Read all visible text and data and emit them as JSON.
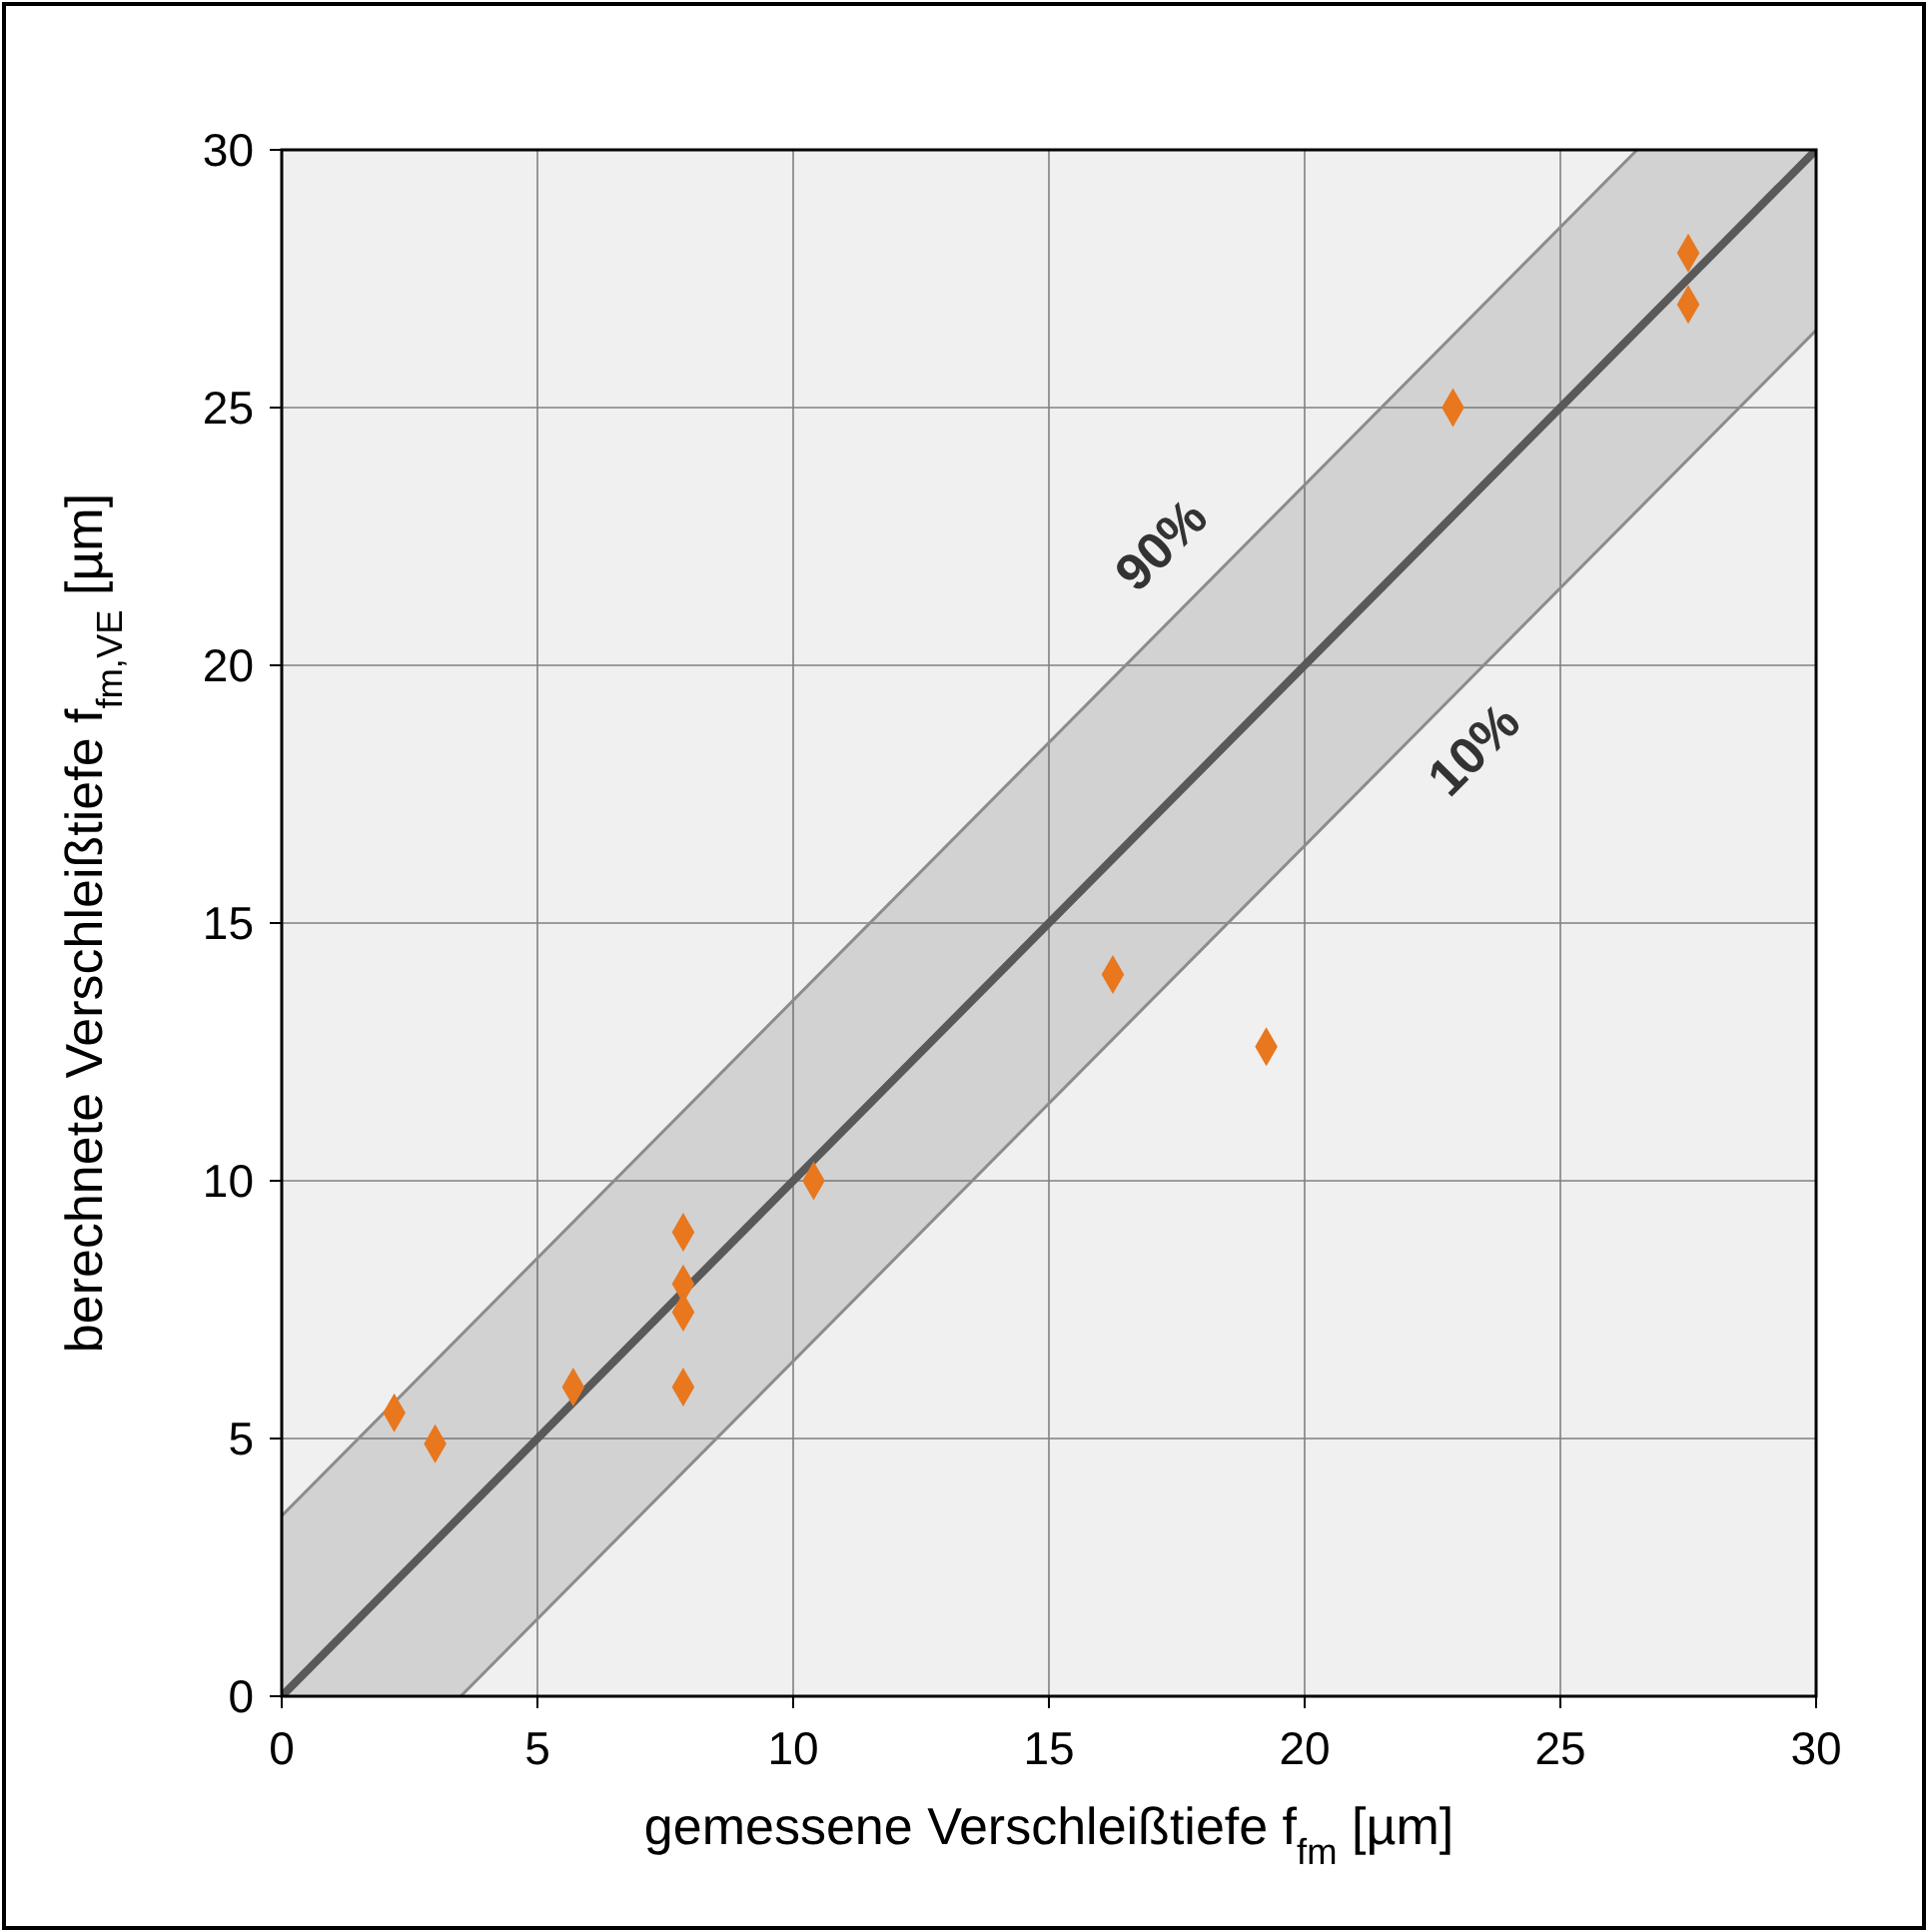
{
  "chart_data": {
    "type": "scatter",
    "xlabel": "gemessene Verschleißtiefe f$_{fm}$ [µm]",
    "ylabel": "berechnete Verschleißtiefe f$_{fm,VE}$ [µm]",
    "xlim": [
      0,
      30
    ],
    "ylim": [
      0,
      30
    ],
    "xticks": [
      0,
      5,
      10,
      15,
      20,
      25,
      30
    ],
    "yticks": [
      0,
      5,
      10,
      15,
      20,
      25,
      30
    ],
    "grid": true,
    "series": [
      {
        "type": "line",
        "x": [
          0,
          3.5,
          26.5,
          30
        ],
        "values": [
          0,
          3.5,
          26.5,
          30
        ],
        "lower": [
          0,
          0,
          23,
          26.5
        ],
        "upper": [
          3.5,
          7,
          30,
          30
        ],
        "color": "#595959",
        "marker": "none",
        "line_style": "solid"
      },
      {
        "type": "line",
        "x": [
          0,
          26.5
        ],
        "values": [
          3.5,
          30
        ],
        "color": "#8c8c8c",
        "marker": "none",
        "line_style": "solid"
      },
      {
        "type": "line",
        "x": [
          3.5,
          30
        ],
        "values": [
          0,
          26.5
        ],
        "color": "#8c8c8c",
        "marker": "none",
        "line_style": "solid"
      },
      {
        "x": [
          2.2,
          3.0,
          5.7,
          7.85,
          7.85,
          7.85,
          7.85,
          10.4,
          16.25,
          19.25,
          22.9,
          27.5,
          27.5
        ],
        "values": [
          5.5,
          4.9,
          6.0,
          9.0,
          8.0,
          7.45,
          6.0,
          10.0,
          14.0,
          12.6,
          25.0,
          28.0,
          27.0
        ],
        "color": "#e8771e",
        "marker": "diamond"
      }
    ],
    "annotations": [
      "90%",
      "10%"
    ]
  }
}
